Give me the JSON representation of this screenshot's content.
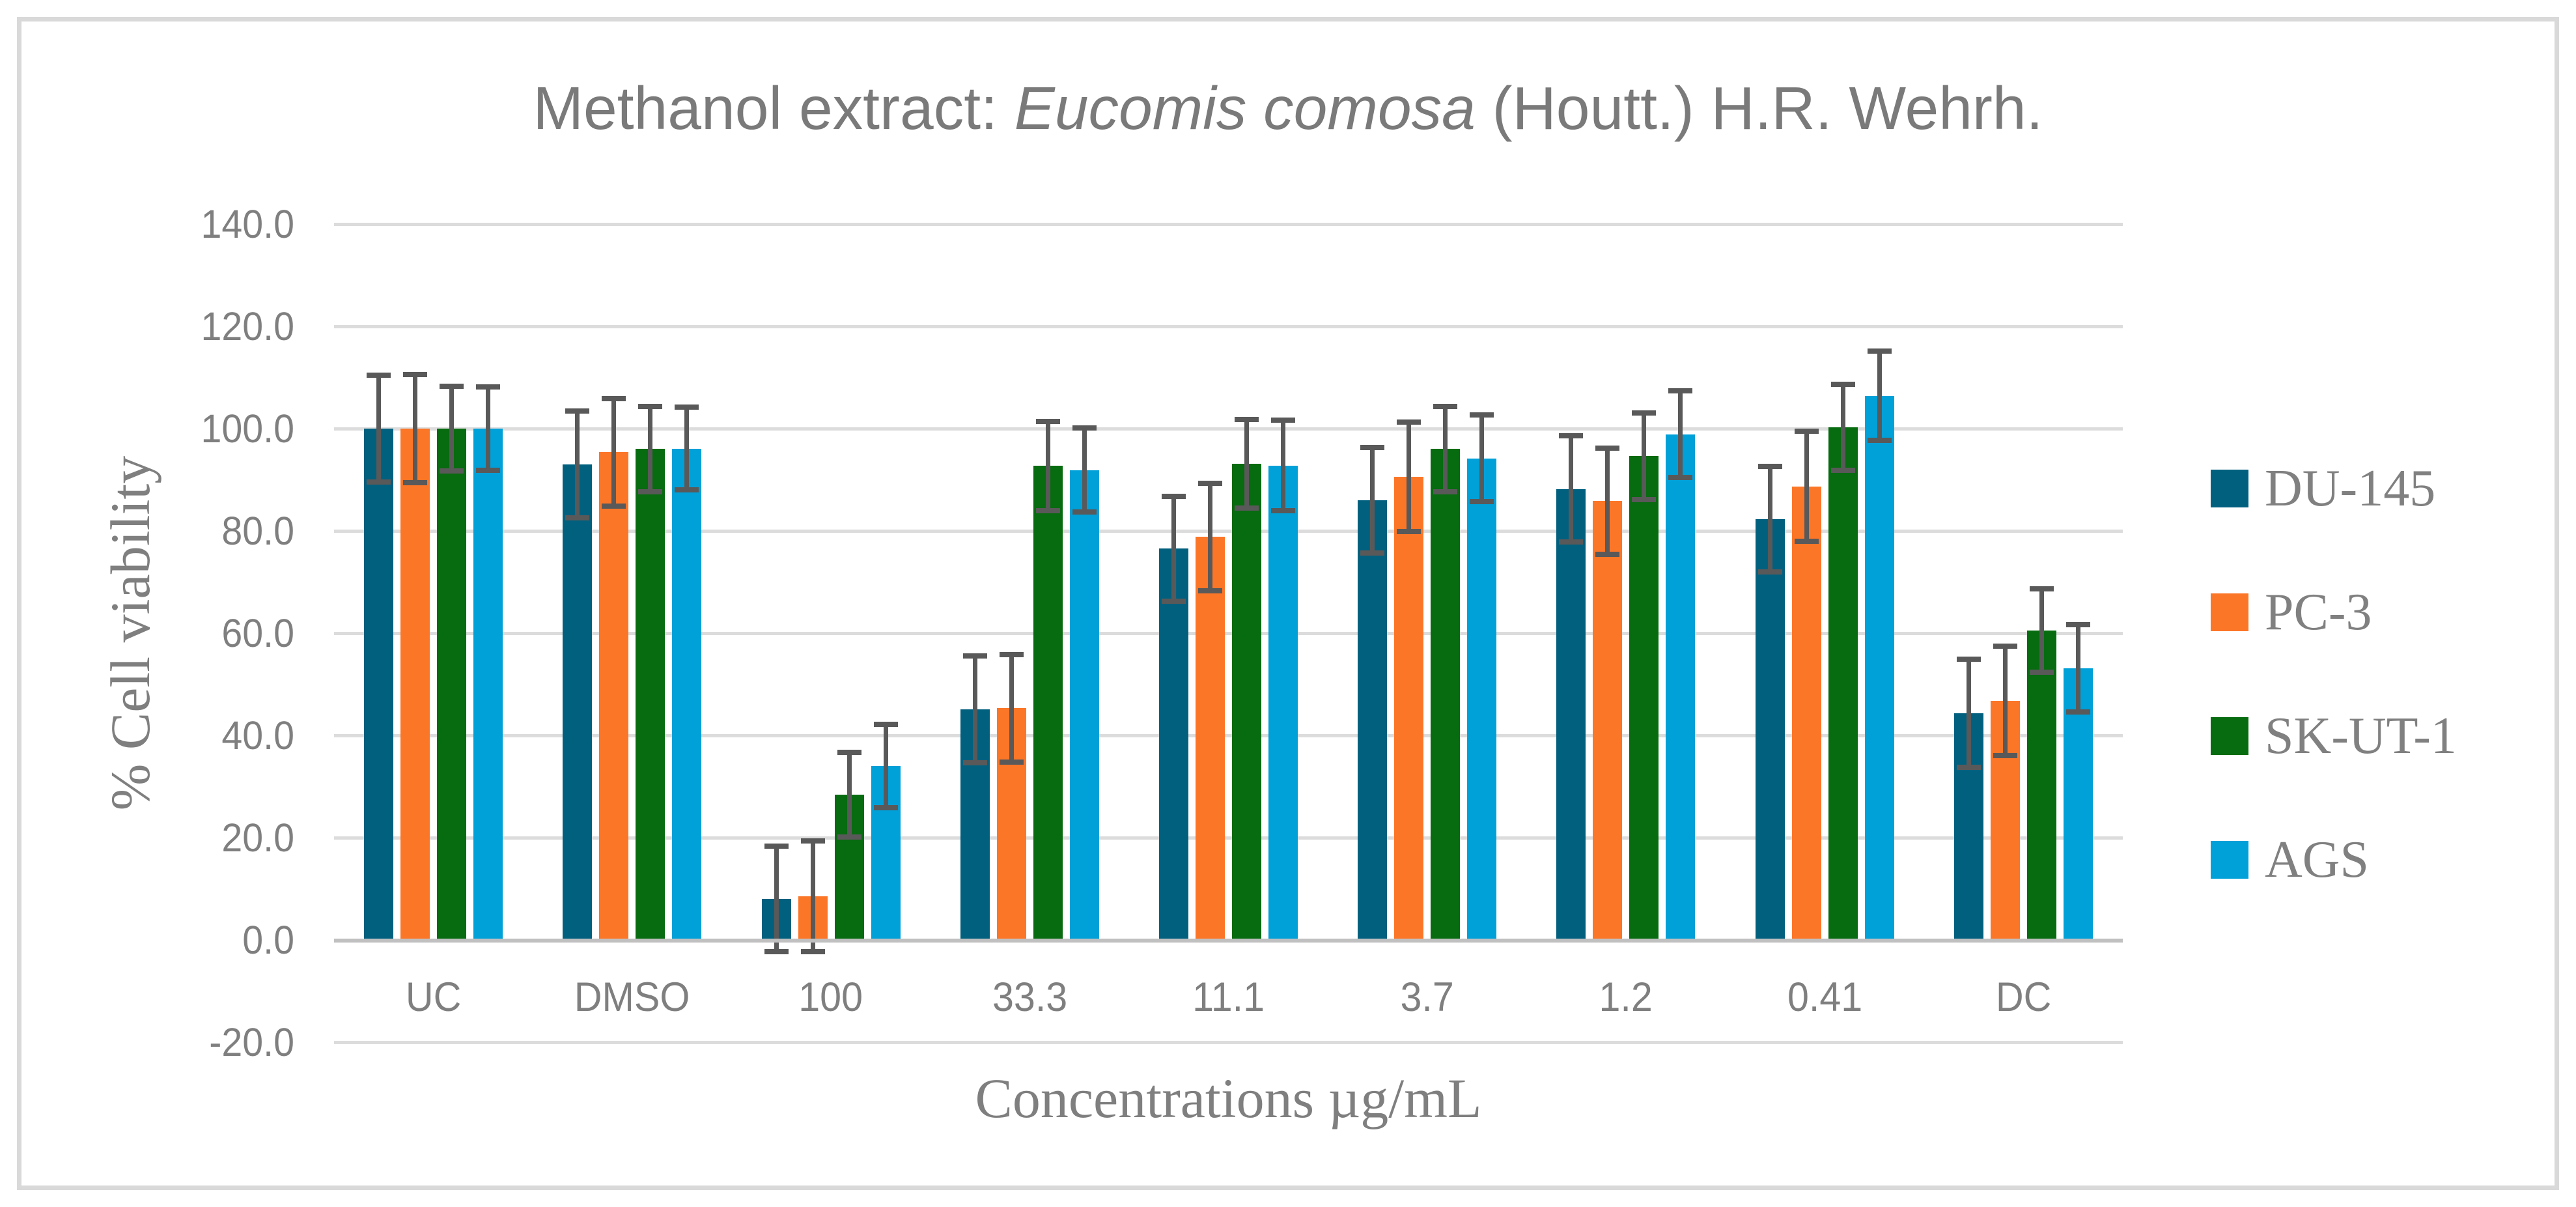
{
  "chart_data": {
    "type": "bar",
    "title": "Methanol extract: Eucomis comosa (Houtt.) H.R. Wehrh.",
    "title_parts": {
      "prefix": "Methanol extract: ",
      "species": "Eucomis comosa",
      "suffix": " (Houtt.) H.R. Wehrh."
    },
    "xlabel": "Concentrations µg/mL",
    "ylabel": "% Cell viability",
    "categories": [
      "UC",
      "DMSO",
      "100",
      "33.3",
      "11.1",
      "3.7",
      "1.2",
      "0.41",
      "DC"
    ],
    "series": [
      {
        "name": "DU-145",
        "color": "#02607F",
        "values": [
          100.0,
          93.0,
          8.0,
          45.1,
          76.5,
          86.0,
          88.2,
          82.3,
          44.3
        ],
        "errors": [
          10.4,
          10.5,
          10.3,
          10.4,
          10.3,
          10.3,
          10.4,
          10.3,
          10.6
        ]
      },
      {
        "name": "PC-3",
        "color": "#FC7628",
        "values": [
          100.0,
          95.4,
          8.5,
          45.3,
          78.8,
          90.6,
          85.8,
          88.7,
          46.8
        ],
        "errors": [
          10.6,
          10.5,
          10.8,
          10.5,
          10.5,
          10.7,
          10.4,
          10.8,
          10.7
        ]
      },
      {
        "name": "SK-UT-1",
        "color": "#076B10",
        "values": [
          100.0,
          96.0,
          28.4,
          92.7,
          93.1,
          96.0,
          94.6,
          100.2,
          60.5
        ],
        "errors": [
          8.3,
          8.3,
          8.3,
          8.7,
          8.7,
          8.3,
          8.5,
          8.4,
          8.2
        ]
      },
      {
        "name": "AGS",
        "color": "#00A0D8",
        "values": [
          100.0,
          96.1,
          34.0,
          91.9,
          92.8,
          94.2,
          98.9,
          106.4,
          53.1
        ],
        "errors": [
          8.2,
          8.1,
          8.2,
          8.2,
          8.8,
          8.5,
          8.5,
          8.7,
          8.5
        ]
      }
    ],
    "ylim": [
      -20,
      140
    ],
    "ytick_step": 20,
    "ytick_labels": [
      "-20.0",
      "0.0",
      "20.0",
      "40.0",
      "60.0",
      "80.0",
      "100.0",
      "120.0",
      "140.0"
    ],
    "error_bars": true,
    "grid": true,
    "legend_position": "right",
    "style": {
      "error_bar_color": "#595959",
      "gridline_color": "#DCDCDC",
      "axis_line_color": "#C0C0C0",
      "text_color": "#7F7F7F",
      "title_color": "#7A7A7A",
      "legend_text_color": "#808080",
      "border_color": "#D9D9D9",
      "background_color": "#FFFFFF"
    }
  }
}
